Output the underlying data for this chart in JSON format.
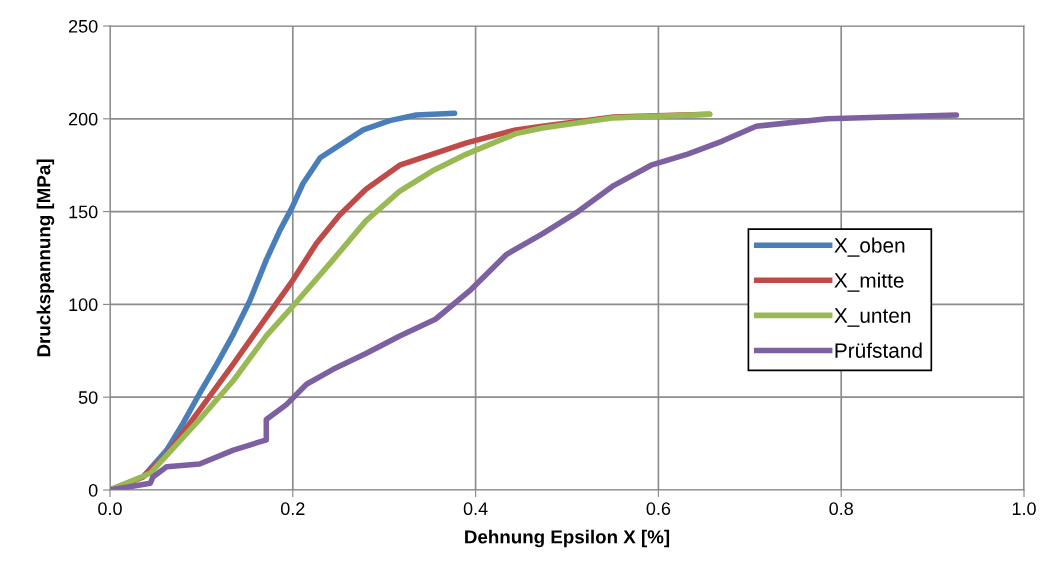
{
  "chart_data": {
    "type": "line",
    "xlabel": "Dehnung Epsilon X [%]",
    "ylabel": "Druckspannung [MPa]",
    "xlim": [
      0,
      1
    ],
    "xticks": [
      {
        "value": 0,
        "label": "0.0"
      },
      {
        "value": 0.2,
        "label": "0.2"
      },
      {
        "value": 0.4,
        "label": "0.4"
      },
      {
        "value": 0.6,
        "label": "0.6"
      },
      {
        "value": 0.8,
        "label": "0.8"
      },
      {
        "value": 1,
        "label": "1.0"
      }
    ],
    "ylim": [
      0,
      250
    ],
    "yticks": [
      0,
      50,
      100,
      150,
      200,
      250
    ],
    "grid": true,
    "legend": "right",
    "marker": "none",
    "line_style": "solid",
    "series": [
      {
        "name": "X_oben",
        "color": "#4a7ebb",
        "x": [
          0,
          0.036,
          0.062,
          0.08,
          0.098,
          0.117,
          0.135,
          0.153,
          0.171,
          0.186,
          0.199,
          0.211,
          0.23,
          0.255,
          0.277,
          0.306,
          0.335,
          0.377
        ],
        "values": [
          0,
          7,
          21.5,
          36,
          52,
          68,
          84,
          102,
          124,
          140,
          152,
          165,
          179,
          187,
          194,
          199,
          202,
          203
        ]
      },
      {
        "name": "X_mitte",
        "color": "#be4b48",
        "x": [
          0,
          0.036,
          0.062,
          0.098,
          0.135,
          0.171,
          0.2,
          0.226,
          0.251,
          0.28,
          0.317,
          0.353,
          0.39,
          0.444,
          0.473,
          0.551,
          0.656
        ],
        "values": [
          0,
          7,
          19,
          43,
          68,
          93,
          113,
          133,
          148,
          162,
          175,
          181,
          187,
          194,
          196,
          201,
          202.5
        ]
      },
      {
        "name": "X_unten",
        "color": "#98b954",
        "x": [
          0,
          0.044,
          0.098,
          0.135,
          0.171,
          0.2,
          0.244,
          0.28,
          0.317,
          0.353,
          0.39,
          0.444,
          0.473,
          0.551,
          0.656
        ],
        "values": [
          0,
          9,
          38,
          59,
          83,
          99,
          124,
          145,
          161,
          172,
          181,
          192,
          195,
          200.5,
          202.5
        ]
      },
      {
        "name": "Prüfstand",
        "color": "#7d60a0",
        "x": [
          0,
          0.044,
          0.047,
          0.062,
          0.098,
          0.135,
          0.171,
          0.171,
          0.193,
          0.215,
          0.244,
          0.28,
          0.317,
          0.356,
          0.395,
          0.434,
          0.473,
          0.512,
          0.551,
          0.592,
          0.632,
          0.67,
          0.707,
          0.785,
          0.926
        ],
        "values": [
          0,
          3.6,
          7,
          12.5,
          14,
          21.5,
          27,
          38,
          46,
          57,
          65,
          73.5,
          83,
          92,
          108,
          127,
          138,
          150,
          164,
          175,
          181,
          188,
          196,
          200,
          202
        ]
      }
    ]
  }
}
